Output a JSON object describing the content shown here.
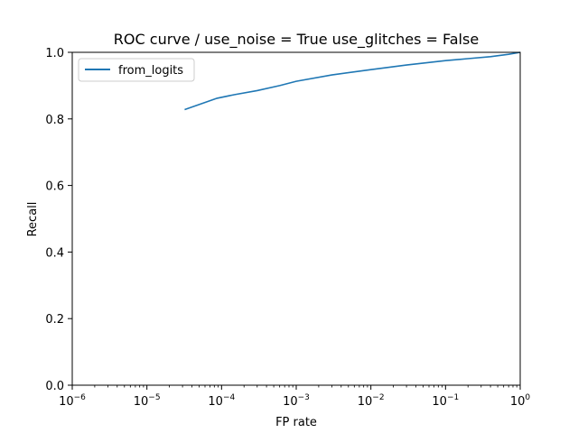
{
  "chart_data": {
    "type": "line",
    "title": "ROC curve / use_noise = True  use_glitches = False",
    "xlabel": "FP rate",
    "ylabel": "Recall",
    "xscale": "log",
    "xlim": [
      1e-06,
      1
    ],
    "ylim": [
      0.0,
      1.0
    ],
    "x_ticks": [
      {
        "value": 1e-06,
        "base": "10",
        "exp": "−6"
      },
      {
        "value": 1e-05,
        "base": "10",
        "exp": "−5"
      },
      {
        "value": 0.0001,
        "base": "10",
        "exp": "−4"
      },
      {
        "value": 0.001,
        "base": "10",
        "exp": "−3"
      },
      {
        "value": 0.01,
        "base": "10",
        "exp": "−2"
      },
      {
        "value": 0.1,
        "base": "10",
        "exp": "−1"
      },
      {
        "value": 1,
        "base": "10",
        "exp": "0"
      }
    ],
    "y_ticks": [
      {
        "value": 0.0,
        "label": "0.0"
      },
      {
        "value": 0.2,
        "label": "0.2"
      },
      {
        "value": 0.4,
        "label": "0.4"
      },
      {
        "value": 0.6,
        "label": "0.6"
      },
      {
        "value": 0.8,
        "label": "0.8"
      },
      {
        "value": 1.0,
        "label": "1.0"
      }
    ],
    "grid": false,
    "legend_position": "top-left",
    "series": [
      {
        "name": "from_logits",
        "color": "#1f77b4",
        "x": [
          3.2e-05,
          5e-05,
          8.7e-05,
          0.00015,
          0.0003,
          0.0006,
          0.001,
          0.003,
          0.01,
          0.03,
          0.1,
          0.2,
          0.4,
          0.7,
          1.0
        ],
        "y": [
          0.828,
          0.843,
          0.862,
          0.873,
          0.885,
          0.9,
          0.913,
          0.932,
          0.948,
          0.962,
          0.975,
          0.981,
          0.987,
          0.994,
          1.0
        ]
      }
    ]
  }
}
